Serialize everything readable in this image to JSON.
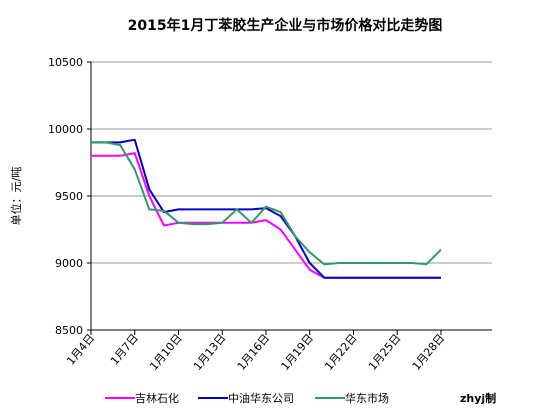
{
  "chart_data": {
    "type": "line",
    "title": "2015年1月丁苯胶生产企业与市场价格对比走势图",
    "y_label": "单位：元/吨",
    "credit": "zhyj制",
    "categories": [
      "1月4日",
      null,
      null,
      "1月7日",
      null,
      null,
      "1月10日",
      null,
      null,
      "1月13日",
      null,
      null,
      "1月16日",
      null,
      null,
      "1月19日",
      null,
      null,
      "1月22日",
      null,
      null,
      "1月25日",
      null,
      null,
      "1月28日",
      null,
      null
    ],
    "ylim": [
      8500,
      10500
    ],
    "yticks": [
      8500,
      9000,
      9500,
      10000,
      10500
    ],
    "grid": true,
    "series": [
      {
        "name": "吉林石化",
        "color": "#ff00ff",
        "values": [
          9800,
          9800,
          9800,
          9820,
          9500,
          9280,
          9300,
          9300,
          9300,
          9300,
          9300,
          9300,
          9320,
          9250,
          9100,
          8950,
          8890,
          8890,
          8890,
          8890,
          8890,
          8890,
          8890,
          8890,
          8890,
          null,
          null
        ]
      },
      {
        "name": "中油华东公司",
        "color": "#0000cc",
        "values": [
          9900,
          9900,
          9900,
          9920,
          9550,
          9380,
          9400,
          9400,
          9400,
          9400,
          9400,
          9400,
          9410,
          9350,
          9200,
          9000,
          8890,
          8890,
          8890,
          8890,
          8890,
          8890,
          8890,
          8890,
          8890,
          null,
          null
        ]
      },
      {
        "name": "华东市场",
        "color": "#339966",
        "values": [
          9900,
          9900,
          9880,
          9700,
          9400,
          9390,
          9300,
          9290,
          9290,
          9300,
          9400,
          9300,
          9420,
          9380,
          9200,
          9080,
          8990,
          9000,
          9000,
          9000,
          9000,
          9000,
          9000,
          8990,
          9100,
          null,
          null
        ]
      }
    ]
  }
}
